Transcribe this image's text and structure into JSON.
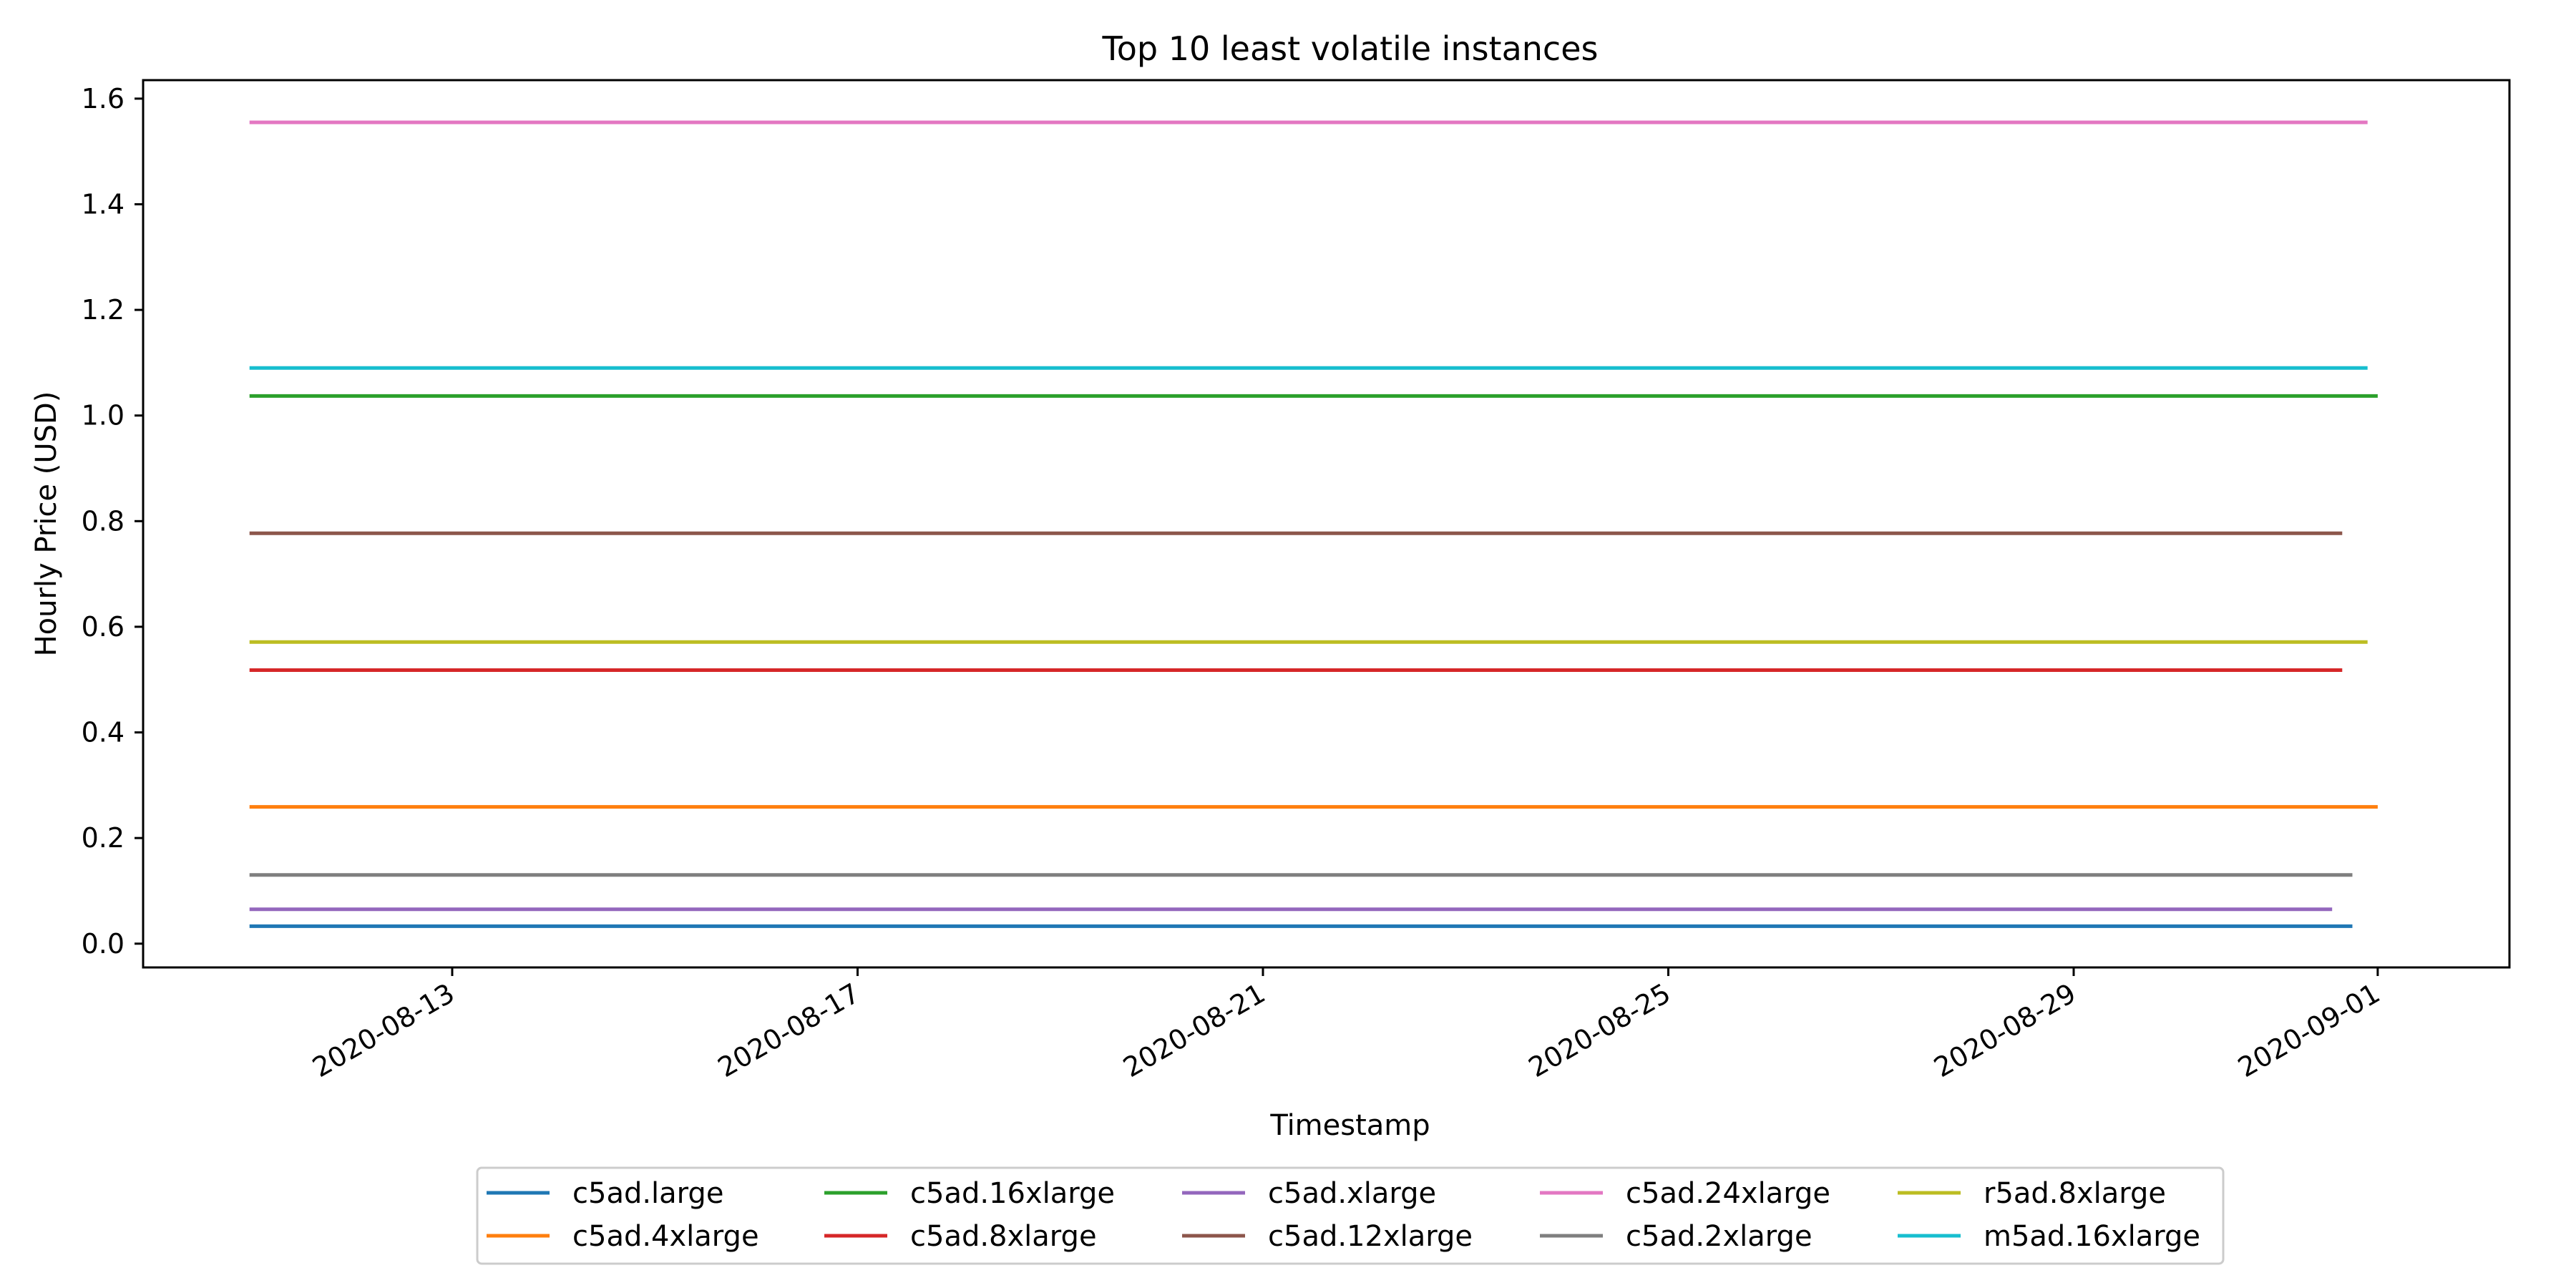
{
  "chart_data": {
    "type": "line",
    "title": "Top 10 least volatile instances",
    "xlabel": "Timestamp",
    "ylabel": "Hourly Price (USD)",
    "x_tick_labels": [
      "2020-08-13",
      "2020-08-17",
      "2020-08-21",
      "2020-08-25",
      "2020-08-29",
      "2020-09-01"
    ],
    "x_tick_values": [
      2.0,
      6.0,
      10.0,
      14.0,
      18.0,
      21.0
    ],
    "x_unit": "days since 2020-08-11",
    "xlim": [
      -1.05,
      22.3
    ],
    "y_ticks": [
      0.0,
      0.2,
      0.4,
      0.6,
      0.8,
      1.0,
      1.2,
      1.4,
      1.6
    ],
    "y_tick_labels": [
      "0.0",
      "0.2",
      "0.4",
      "0.6",
      "0.8",
      "1.0",
      "1.2",
      "1.4",
      "1.6"
    ],
    "ylim": [
      -0.045,
      1.635
    ],
    "grid": false,
    "legend_position": "bottom-center",
    "legend_columns": 5,
    "series": [
      {
        "name": "c5ad.large",
        "color": "#1f77b4",
        "x": [
          0.0,
          20.75
        ],
        "values": [
          0.033,
          0.033
        ]
      },
      {
        "name": "c5ad.4xlarge",
        "color": "#ff7f0e",
        "x": [
          0.0,
          21.0
        ],
        "values": [
          0.259,
          0.259
        ]
      },
      {
        "name": "c5ad.16xlarge",
        "color": "#2ca02c",
        "x": [
          0.0,
          21.0
        ],
        "values": [
          1.037,
          1.037
        ]
      },
      {
        "name": "c5ad.8xlarge",
        "color": "#d62728",
        "x": [
          0.0,
          20.65
        ],
        "values": [
          0.518,
          0.518
        ]
      },
      {
        "name": "c5ad.xlarge",
        "color": "#9467bd",
        "x": [
          0.0,
          20.55
        ],
        "values": [
          0.065,
          0.065
        ]
      },
      {
        "name": "c5ad.12xlarge",
        "color": "#8c564b",
        "x": [
          0.0,
          20.65
        ],
        "values": [
          0.777,
          0.777
        ]
      },
      {
        "name": "c5ad.24xlarge",
        "color": "#e377c2",
        "x": [
          0.0,
          20.9
        ],
        "values": [
          1.555,
          1.555
        ]
      },
      {
        "name": "c5ad.2xlarge",
        "color": "#7f7f7f",
        "x": [
          0.0,
          20.75
        ],
        "values": [
          0.13,
          0.13
        ]
      },
      {
        "name": "r5ad.8xlarge",
        "color": "#bcbd22",
        "x": [
          0.0,
          20.9
        ],
        "values": [
          0.571,
          0.571
        ]
      },
      {
        "name": "m5ad.16xlarge",
        "color": "#17becf",
        "x": [
          0.0,
          20.9
        ],
        "values": [
          1.09,
          1.09
        ]
      }
    ]
  }
}
